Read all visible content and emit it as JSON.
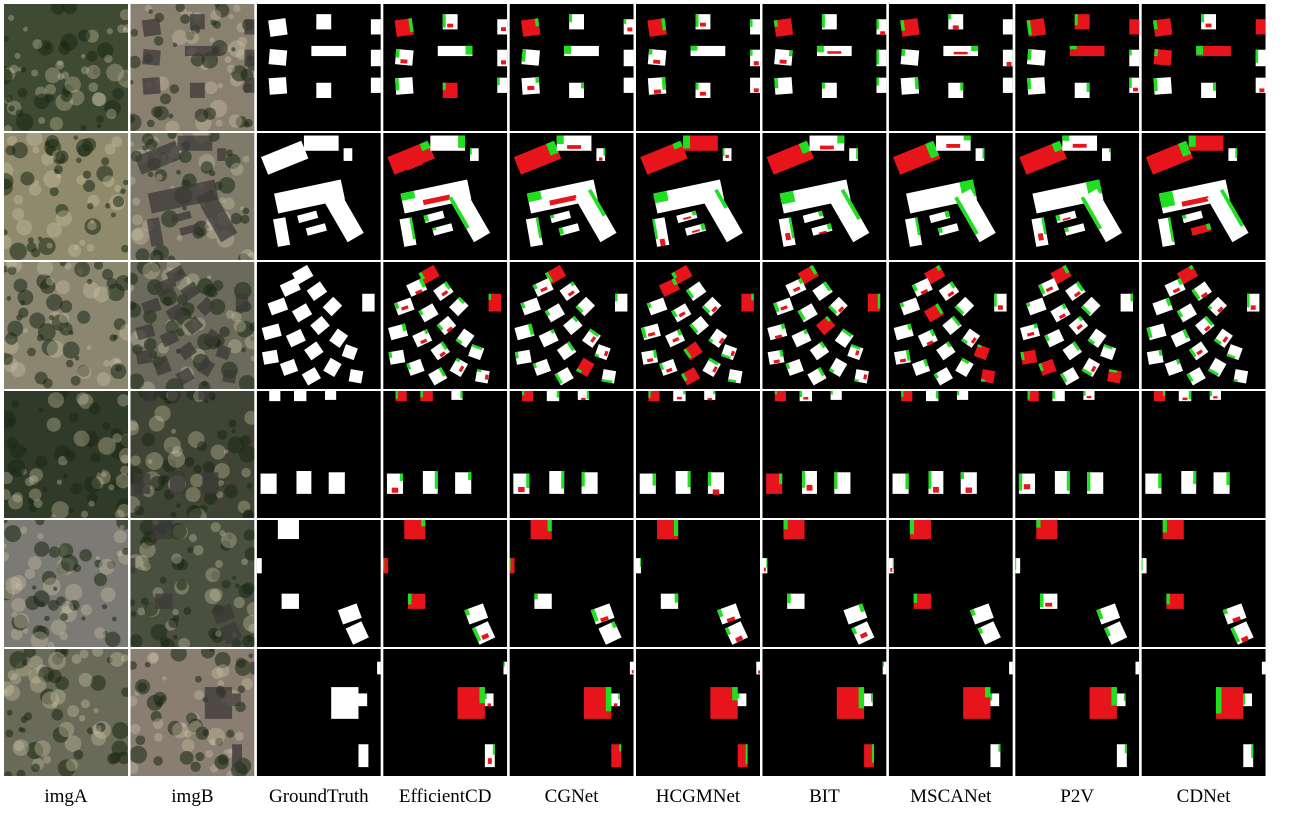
{
  "figure": {
    "columns": [
      {
        "key": "imgA",
        "label": "imgA",
        "kind": "photo-before"
      },
      {
        "key": "imgB",
        "label": "imgB",
        "kind": "photo-after"
      },
      {
        "key": "gt",
        "label": "GroundTruth",
        "kind": "mask"
      },
      {
        "key": "efficientcd",
        "label": "EfficientCD",
        "kind": "prediction"
      },
      {
        "key": "cgnet",
        "label": "CGNet",
        "kind": "prediction"
      },
      {
        "key": "hcgmnet",
        "label": "HCGMNet",
        "kind": "prediction"
      },
      {
        "key": "bit",
        "label": "BIT",
        "kind": "prediction"
      },
      {
        "key": "mscanet",
        "label": "MSCANet",
        "kind": "prediction"
      },
      {
        "key": "p2v",
        "label": "P2V",
        "kind": "prediction"
      },
      {
        "key": "cdnet",
        "label": "CDNet",
        "kind": "prediction"
      }
    ],
    "rows": 6,
    "colors": {
      "background": "#000000",
      "true_positive": "#ffffff",
      "false_positive": "#e8141b",
      "false_negative": "#1fe01f",
      "gap": "#ffffff"
    }
  }
}
